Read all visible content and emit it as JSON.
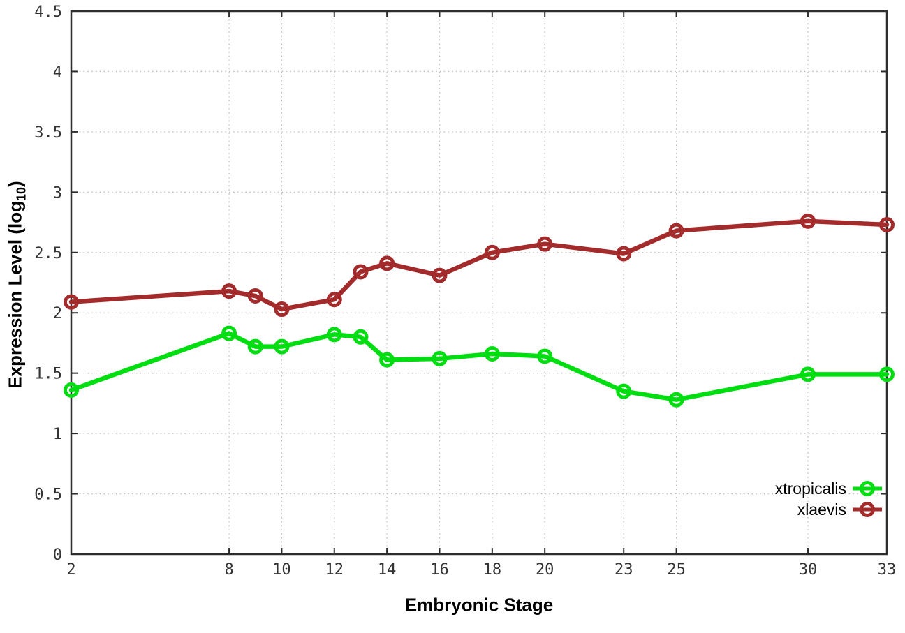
{
  "chart_data": {
    "type": "line",
    "title": "",
    "xlabel": "Embryonic Stage",
    "ylabel": {
      "main": "Expression Level (log",
      "sub": "10",
      "end": ")"
    },
    "xlim": [
      2,
      33
    ],
    "ylim": [
      0,
      4.5
    ],
    "xticks": [
      2,
      8,
      10,
      12,
      14,
      16,
      18,
      20,
      23,
      25,
      30,
      33
    ],
    "yticks": [
      0,
      0.5,
      1,
      1.5,
      2,
      2.5,
      3,
      3.5,
      4,
      4.5
    ],
    "grid": true,
    "legend_position": "bottom-right-inside",
    "axis_color": "#2e2e2e",
    "grid_color": "#bcbcbc",
    "tick_label_color": "#333333",
    "x": [
      2,
      8,
      9,
      10,
      12,
      13,
      14,
      16,
      18,
      20,
      23,
      25,
      30,
      33
    ],
    "series": [
      {
        "name": "xtropicalis",
        "color": "#00de12",
        "values": [
          1.36,
          1.83,
          1.72,
          1.72,
          1.82,
          1.8,
          1.61,
          1.62,
          1.66,
          1.64,
          1.35,
          1.28,
          1.49,
          1.49
        ]
      },
      {
        "name": "xlaevis",
        "color": "#a42b2b",
        "values": [
          2.09,
          2.18,
          2.14,
          2.03,
          2.11,
          2.34,
          2.41,
          2.31,
          2.5,
          2.57,
          2.49,
          2.68,
          2.76,
          2.73
        ]
      }
    ]
  }
}
